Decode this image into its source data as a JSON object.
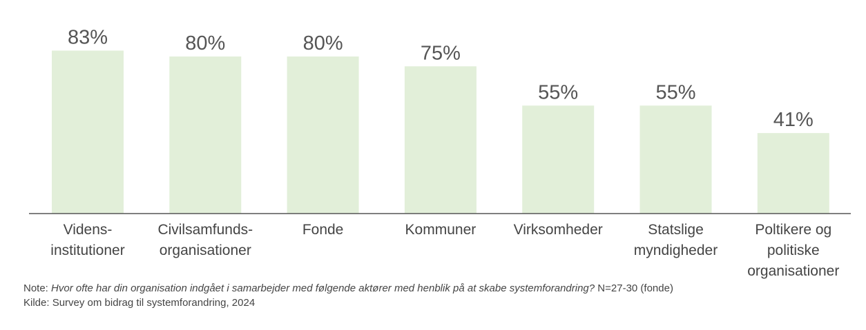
{
  "chart_data": {
    "type": "bar",
    "categories": [
      [
        "Videns-",
        "institutioner"
      ],
      [
        "Civilsamfunds-",
        "organisationer"
      ],
      [
        "Fonde"
      ],
      [
        "Kommuner"
      ],
      [
        "Virksomheder"
      ],
      [
        "Statslige",
        "myndigheder"
      ],
      [
        "Poltikere og",
        "politiske",
        "organisationer"
      ]
    ],
    "values": [
      83,
      80,
      80,
      75,
      55,
      55,
      41
    ],
    "value_labels": [
      "83%",
      "80%",
      "80%",
      "75%",
      "55%",
      "55%",
      "41%"
    ],
    "unit": "%",
    "ylim": [
      0,
      100
    ],
    "grid": false,
    "legend": "none",
    "bar_color": "#e2efd9",
    "baseline_color": "#555555",
    "label_color": "#555555"
  },
  "note": {
    "prefix": "Note: ",
    "question": "Hvor ofte har din organisation indgået i samarbejder med følgende aktører med henblik på at skabe systemforandring?",
    "suffix": " N=27-30 (fonde)"
  },
  "source": "Kilde: Survey om bidrag til systemforandring, 2024"
}
